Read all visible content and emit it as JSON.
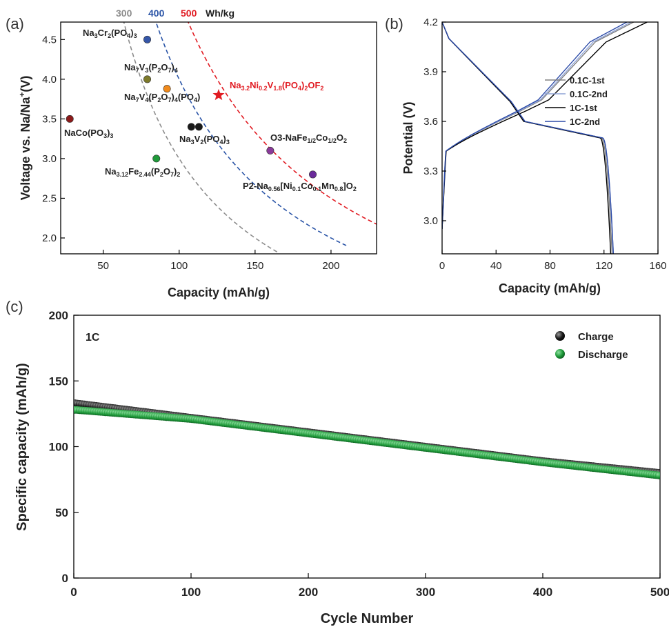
{
  "chart_data": [
    {
      "panel": "(a)",
      "type": "scatter",
      "xlabel": "Capacity (mAh/g)",
      "ylabel": "Voltage vs. Na/Na+(V)",
      "xlim": [
        22,
        230
      ],
      "ylim": [
        1.8,
        4.72
      ],
      "xticks": [
        50,
        100,
        150,
        200
      ],
      "yticks": [
        2.0,
        2.5,
        3.0,
        3.5,
        4.0,
        4.5
      ],
      "energy_curves": [
        {
          "label": "300",
          "wh_per_kg": 300,
          "color": "#8c8c8c"
        },
        {
          "label": "400",
          "wh_per_kg": 400,
          "color": "#2b55a7"
        },
        {
          "label": "500",
          "wh_per_kg": 500,
          "color": "#e11b22"
        }
      ],
      "energy_unit": "Wh/kg",
      "points": [
        {
          "label": "Na3Cr2(PO4)3",
          "x": 79,
          "y": 4.5,
          "color": "#3556a8"
        },
        {
          "label": "Na7V3(P2O7)4",
          "x": 79,
          "y": 4.0,
          "color": "#7d7a2a"
        },
        {
          "label": "Na7V4(P2O7)4(PO4)",
          "x": 92,
          "y": 3.88,
          "color": "#f08a1c"
        },
        {
          "label": "NaCo(PO3)3",
          "x": 28,
          "y": 3.5,
          "color": "#8b1a1a"
        },
        {
          "label": "Na3V2(PO4)3",
          "x": 108,
          "y": 3.4,
          "color": "#1a1a1a"
        },
        {
          "label": "Na3V2(PO4)3",
          "x": 113,
          "y": 3.4,
          "color": "#1a1a1a"
        },
        {
          "label": "Na3.12Fe2.44(P2O7)2",
          "x": 85,
          "y": 3.0,
          "color": "#1f9a3a"
        },
        {
          "label": "O3-NaFe1/2Co1/2O2",
          "x": 160,
          "y": 3.1,
          "color": "#8a3a9a"
        },
        {
          "label": "P2-Na0.56[Ni0.1Co0.1Mn0.8]O2",
          "x": 188,
          "y": 2.8,
          "color": "#6a2a9a"
        },
        {
          "label": "Na3.2Ni0.2V1.8(PO4)2OF2",
          "x": 126,
          "y": 3.8,
          "color": "#e11b22",
          "marker": "star"
        }
      ]
    },
    {
      "panel": "(b)",
      "type": "line",
      "xlabel": "Capacity (mAh/g)",
      "ylabel": "Potential (V)",
      "xlim": [
        0,
        160
      ],
      "ylim": [
        2.8,
        4.2
      ],
      "xticks": [
        0,
        40,
        80,
        120,
        160
      ],
      "yticks": [
        3.0,
        3.3,
        3.6,
        3.9,
        4.2
      ],
      "legend_position": "right",
      "series": [
        {
          "name": "0.1C-1st",
          "color": "#808080",
          "charge_end": 142,
          "discharge_end": 127
        },
        {
          "name": "0.1C-2nd",
          "color": "#8fa3d6",
          "charge_end": 140,
          "discharge_end": 128
        },
        {
          "name": "1C-1st",
          "color": "#000000",
          "charge_end": 152,
          "discharge_end": 126
        },
        {
          "name": "1C-2nd",
          "color": "#2b4aa8",
          "charge_end": 137,
          "discharge_end": 128
        }
      ]
    },
    {
      "panel": "(c)",
      "type": "scatter",
      "xlabel": "Cycle Number",
      "ylabel": "Specific capacity (mAh/g)",
      "xlim": [
        0,
        500
      ],
      "ylim": [
        0,
        200
      ],
      "xticks": [
        0,
        100,
        200,
        300,
        400,
        500
      ],
      "yticks": [
        0,
        50,
        100,
        150,
        200
      ],
      "annotation": "1C",
      "legend_position": "top-right",
      "series": [
        {
          "name": "Charge",
          "color": "#1a1a1a",
          "x": [
            1,
            100,
            200,
            300,
            400,
            500
          ],
          "values": [
            133,
            122,
            111,
            100,
            89,
            80
          ]
        },
        {
          "name": "Discharge",
          "color": "#1f9a3a",
          "x": [
            1,
            100,
            200,
            300,
            400,
            500
          ],
          "values": [
            128,
            121,
            110,
            99,
            88,
            78
          ]
        }
      ]
    }
  ]
}
